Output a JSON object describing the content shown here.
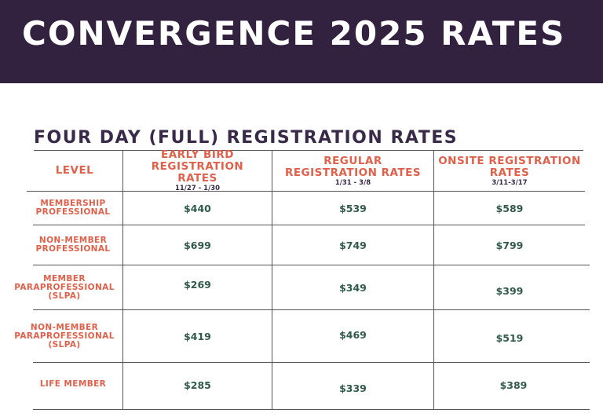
{
  "banner": {
    "title": "CONVERGENCE 2025 RATES"
  },
  "section_title": "FOUR DAY (FULL)  REGISTRATION RATES",
  "headers": {
    "level": "LEVEL",
    "early_bird": {
      "title": "EARLY BIRD REGISTRATION RATES",
      "dates": "11/27 - 1/30"
    },
    "regular": {
      "title": "REGULAR REGISTRATION RATES",
      "dates": "1/31 - 3/8"
    },
    "onsite": {
      "title": "ONSITE REGISTRATION RATES",
      "dates": "3/11-3/17"
    }
  },
  "rows": [
    {
      "level": "MEMBERSHIP PROFESSIONAL",
      "early_bird": "$440",
      "regular": "$539",
      "onsite": "$589"
    },
    {
      "level": "NON-MEMBER PROFESSIONAL",
      "early_bird": "$699",
      "regular": "$749",
      "onsite": "$799"
    },
    {
      "level": "MEMBER PARAPROFESSIONAL (SLPA)",
      "early_bird": "$269",
      "regular": "$349",
      "onsite": "$399"
    },
    {
      "level": "NON-MEMBER PARAPROFESSIONAL (SLPA)",
      "early_bird": "$419",
      "regular": "$469",
      "onsite": "$519"
    },
    {
      "level": "LIFE MEMBER",
      "early_bird": "$285",
      "regular": "$339",
      "onsite": "$389"
    }
  ],
  "colors": {
    "banner": "#33223f",
    "accent": "#e0604a",
    "price": "#2f5a4c",
    "heading": "#3a2a4a"
  }
}
